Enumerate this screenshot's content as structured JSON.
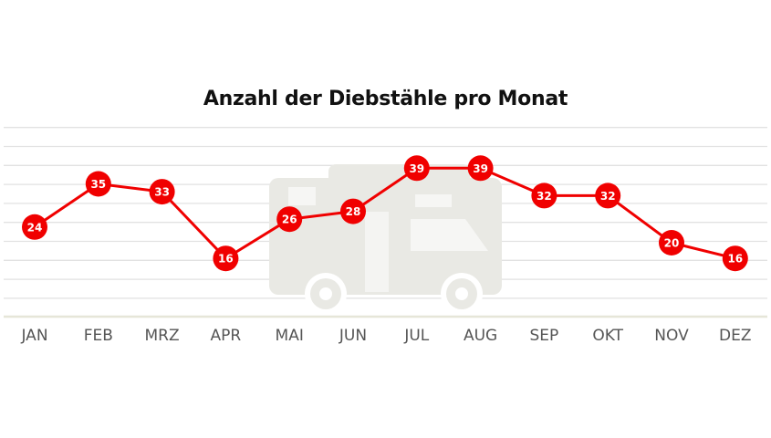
{
  "chart_data": {
    "type": "line",
    "title": "Anzahl der Diebstähle pro Monat",
    "categories": [
      "JAN",
      "FEB",
      "MRZ",
      "APR",
      "MAI",
      "JUN",
      "JUL",
      "AUG",
      "SEP",
      "OKT",
      "NOV",
      "DEZ"
    ],
    "series": [
      {
        "values": [
          24,
          35,
          33,
          16,
          26,
          28,
          39,
          39,
          32,
          32,
          20,
          16
        ]
      }
    ],
    "ylim": [
      0,
      50
    ],
    "grid": true,
    "data_labels": true,
    "legend": "none",
    "colors": {
      "line": "#f00000",
      "grid": "#e2e2e2",
      "baseline": "#e6e6d8",
      "watermark": "#e9e9e4",
      "tick_text": "#555555"
    },
    "background_icon": "camper-van-icon"
  }
}
